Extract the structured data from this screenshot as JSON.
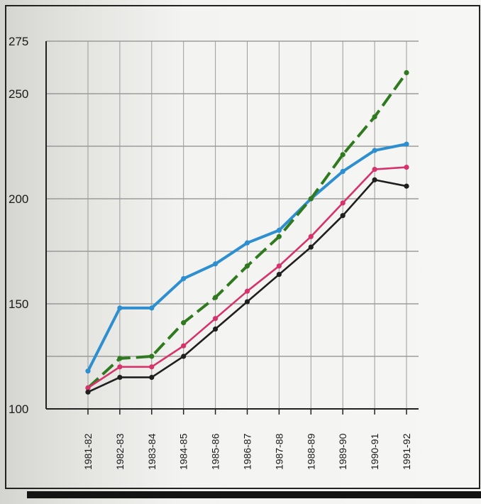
{
  "chart_data": {
    "type": "line",
    "title": "",
    "xlabel": "",
    "ylabel": "",
    "categories": [
      "1981-82",
      "1982-83",
      "1983-84",
      "1984-85",
      "1985-86",
      "1986-87",
      "1987-88",
      "1988-89",
      "1989-90",
      "1990-91",
      "1991-92"
    ],
    "ylim": [
      100,
      275
    ],
    "yticks": [
      100,
      150,
      200,
      250,
      275
    ],
    "ytick_labels": [
      "100",
      "150",
      "200",
      "250",
      "275"
    ],
    "minor_gridlines": [
      125,
      175,
      225
    ],
    "grid": true,
    "legend": "none",
    "series": [
      {
        "color": "#2e8fd0",
        "style": "solid",
        "values": [
          118,
          148,
          148,
          162,
          169,
          179,
          185,
          200,
          213,
          223,
          226
        ]
      },
      {
        "color": "#2f7a1e",
        "style": "dashed",
        "values": [
          110,
          124,
          125,
          141,
          153,
          168,
          182,
          200,
          221,
          239,
          260
        ]
      },
      {
        "color": "#d6336c",
        "style": "solid",
        "values": [
          110,
          120,
          120,
          130,
          143,
          156,
          168,
          182,
          198,
          214,
          215
        ]
      },
      {
        "color": "#1f1f1f",
        "style": "solid",
        "values": [
          108,
          115,
          115,
          125,
          138,
          151,
          164,
          177,
          192,
          209,
          206
        ]
      }
    ]
  }
}
